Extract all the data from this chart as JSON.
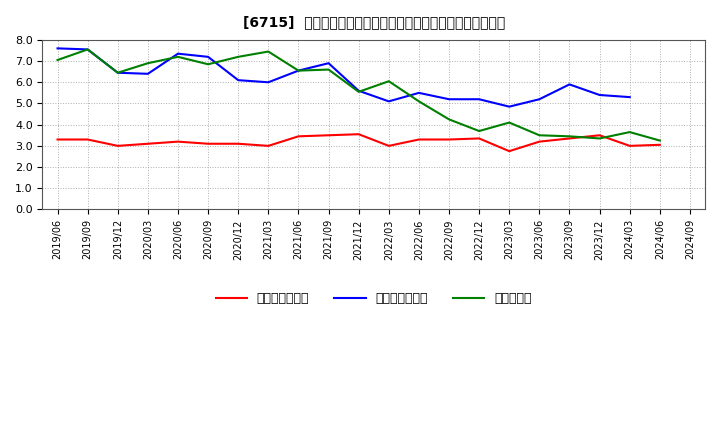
{
  "title": "[6715]  売上債権回転率、買入債務回転率、在庫回転率の推移",
  "xlabel_dates": [
    "2019/06",
    "2019/09",
    "2019/12",
    "2020/03",
    "2020/06",
    "2020/09",
    "2020/12",
    "2021/03",
    "2021/06",
    "2021/09",
    "2021/12",
    "2022/03",
    "2022/06",
    "2022/09",
    "2022/12",
    "2023/03",
    "2023/06",
    "2023/09",
    "2023/12",
    "2024/03",
    "2024/06",
    "2024/09"
  ],
  "売上債権回転率": [
    3.3,
    3.3,
    3.0,
    3.1,
    3.2,
    3.1,
    3.1,
    3.0,
    3.45,
    3.5,
    3.55,
    3.0,
    3.3,
    3.3,
    3.35,
    2.75,
    3.2,
    3.35,
    3.5,
    3.0,
    3.05,
    null
  ],
  "買入債務回転率": [
    7.6,
    7.55,
    6.45,
    6.4,
    7.35,
    7.2,
    6.1,
    6.0,
    6.55,
    6.9,
    5.6,
    5.1,
    5.5,
    5.2,
    5.2,
    4.85,
    5.2,
    5.9,
    5.4,
    5.3,
    null,
    null
  ],
  "在庫回転率": [
    7.05,
    7.55,
    6.45,
    6.9,
    7.2,
    6.85,
    7.2,
    7.45,
    6.55,
    6.6,
    5.55,
    6.05,
    5.1,
    4.25,
    3.7,
    4.1,
    3.5,
    3.45,
    3.35,
    3.65,
    3.25,
    null
  ],
  "color_売上債権": "#ff0000",
  "color_買入債務": "#0000ff",
  "color_在庫": "#008000",
  "ylim": [
    0.0,
    8.0
  ],
  "yticks": [
    0.0,
    1.0,
    2.0,
    3.0,
    4.0,
    5.0,
    6.0,
    7.0,
    8.0
  ],
  "legend_labels": [
    "売上債権回転率",
    "買入債務回転率",
    "在庫回転率"
  ],
  "background_color": "#ffffff",
  "grid_color": "#aaaaaa"
}
